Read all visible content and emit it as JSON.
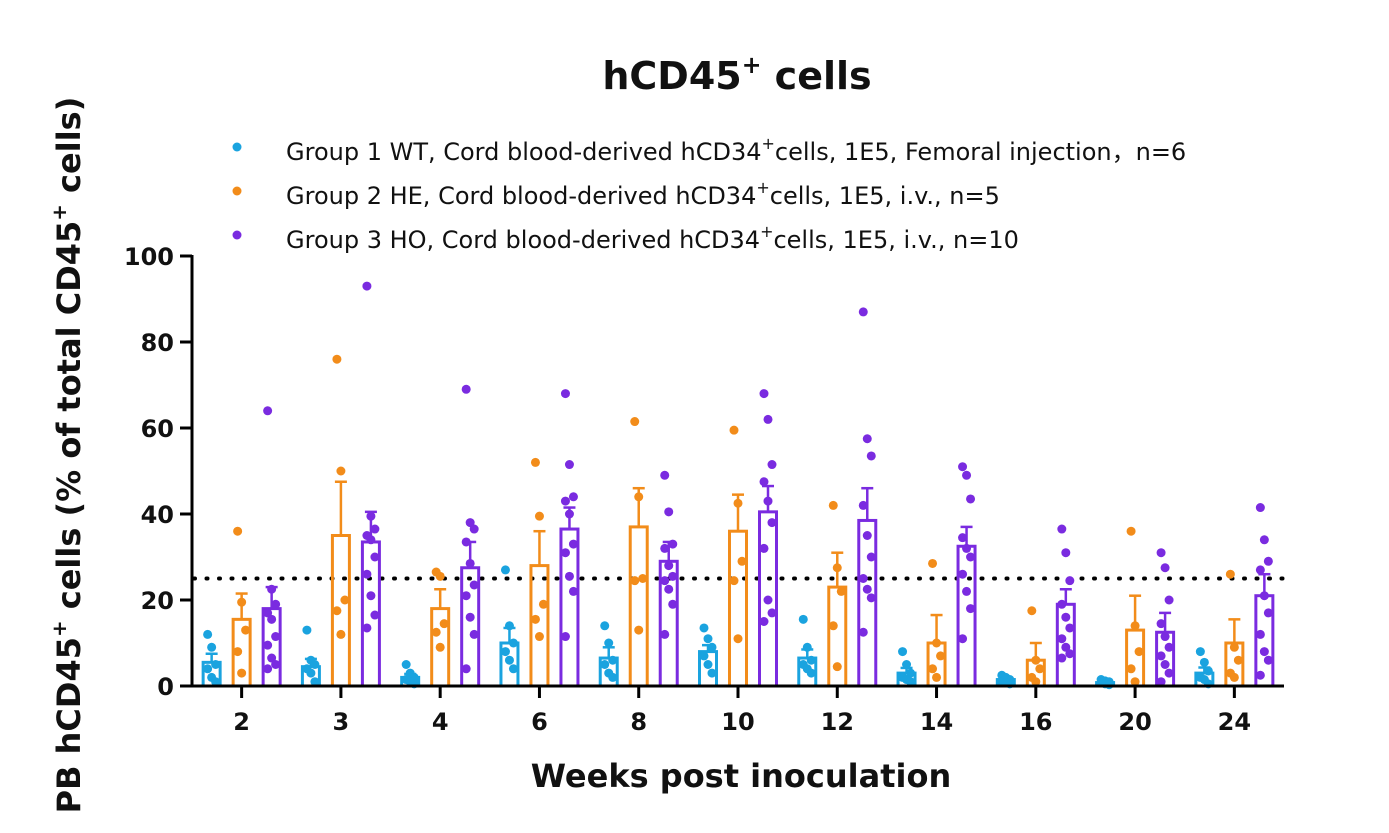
{
  "chart_data": {
    "type": "bar",
    "title": "hCD45",
    "title_sup": "+",
    "title_suffix": " cells",
    "xlabel": "Weeks post inoculation",
    "ylabel_prefix": "PB hCD45",
    "ylabel_sup": "+",
    "ylabel_mid": " cells  (% of total CD45",
    "ylabel_sup2": "+",
    "ylabel_suffix": " cells)",
    "ylim": [
      0,
      100
    ],
    "yticks": [
      "0",
      "20",
      "40",
      "60",
      "80",
      "100"
    ],
    "threshold": 25,
    "categories": [
      "2",
      "3",
      "4",
      "6",
      "8",
      "10",
      "12",
      "14",
      "16",
      "20",
      "24"
    ],
    "series": [
      {
        "name": "Group 1 WT",
        "legend_pre": "Group 1 WT, Cord blood-derived hCD34",
        "legend_sup": "+",
        "legend_post": "cells, 1E5, Femoral injection，n=6",
        "color": "#1aa3df",
        "means": [
          5.5,
          4.5,
          2.0,
          10.0,
          6.5,
          8.0,
          6.5,
          3.0,
          1.5,
          0.8,
          3.0
        ],
        "errors": [
          2.0,
          1.8,
          0.8,
          3.5,
          2.5,
          1.5,
          2.0,
          1.2,
          0.4,
          0.3,
          1.3
        ],
        "points": [
          [
            12,
            9,
            5,
            4,
            2,
            1
          ],
          [
            13,
            6,
            5,
            4,
            3,
            1
          ],
          [
            5,
            3,
            2,
            1.5,
            1,
            0.5
          ],
          [
            27,
            14,
            10,
            8,
            6,
            4
          ],
          [
            14,
            10,
            6,
            5,
            3,
            2
          ],
          [
            13.5,
            11,
            9,
            7,
            5,
            3
          ],
          [
            15.5,
            9,
            6,
            5,
            4,
            3
          ],
          [
            8,
            5,
            3,
            2,
            1.5,
            1
          ],
          [
            2.5,
            2,
            1.5,
            1,
            0.8,
            0.5
          ],
          [
            1.5,
            1.2,
            1,
            0.7,
            0.5,
            0.3
          ],
          [
            8,
            5.5,
            3.5,
            2,
            1.5,
            0.5
          ]
        ]
      },
      {
        "name": "Group 2 HE",
        "legend_pre": "Group 2 HE, Cord blood-derived hCD34",
        "legend_sup": "+",
        "legend_post": "cells, 1E5, i.v., n=5",
        "color": "#f28c1a",
        "means": [
          15.5,
          35.0,
          18.0,
          28.0,
          37.0,
          36.0,
          23.0,
          10.0,
          6.0,
          13.0,
          10.0
        ],
        "errors": [
          6.0,
          12.5,
          4.5,
          8.0,
          9.0,
          8.5,
          8.0,
          6.5,
          4.0,
          8.0,
          5.5
        ],
        "points": [
          [
            36,
            19.5,
            13,
            8,
            3
          ],
          [
            76,
            50,
            20,
            17.5,
            12
          ],
          [
            26.5,
            25.5,
            14.5,
            12.5,
            9
          ],
          [
            52,
            39.5,
            19,
            15.5,
            11.5
          ],
          [
            61.5,
            44,
            25,
            24.5,
            13
          ],
          [
            59.5,
            42.5,
            29,
            24.5,
            11
          ],
          [
            42,
            27.5,
            22,
            14,
            4.5
          ],
          [
            28.5,
            10,
            7,
            4,
            2
          ],
          [
            17.5,
            6,
            4,
            2,
            1
          ],
          [
            36,
            14,
            8,
            4,
            1
          ],
          [
            26,
            9,
            6,
            3,
            2
          ]
        ]
      },
      {
        "name": "Group 3 HO",
        "legend_pre": "Group 3 HO, Cord blood-derived hCD34",
        "legend_sup": "+",
        "legend_post": "cells, 1E5, i.v., n=10",
        "color": "#7a2be0",
        "means": [
          18.0,
          33.5,
          27.5,
          36.5,
          29.0,
          40.5,
          38.5,
          32.5,
          19.0,
          12.5,
          21.0
        ],
        "errors": [
          5.0,
          7.0,
          6.0,
          5.0,
          4.5,
          6.0,
          7.5,
          4.5,
          3.5,
          4.5,
          5.0
        ],
        "points": [
          [
            64,
            22.5,
            19,
            17,
            15.5,
            11.5,
            9.5,
            6.5,
            5,
            4
          ],
          [
            93,
            39.5,
            36.5,
            35,
            34,
            30,
            26,
            21,
            16.5,
            13.5
          ],
          [
            69,
            38,
            36.5,
            33.5,
            28.5,
            23.5,
            21,
            16,
            12,
            4
          ],
          [
            68,
            51.5,
            44,
            43,
            40,
            33,
            31,
            25.5,
            22,
            11.5
          ],
          [
            49,
            40.5,
            33,
            32,
            28,
            25.5,
            24.5,
            22.5,
            19,
            12
          ],
          [
            68,
            62,
            51.5,
            47.5,
            43,
            38,
            32,
            20,
            17,
            15
          ],
          [
            87,
            57.5,
            53.5,
            42,
            35,
            30,
            25,
            22.5,
            20.5,
            12.5
          ],
          [
            51,
            49,
            43.5,
            34.5,
            32,
            30,
            26,
            22,
            18,
            11
          ],
          [
            36.5,
            31,
            24.5,
            19,
            16,
            13.5,
            11,
            9,
            7.5,
            6.5
          ],
          [
            31,
            27.5,
            20,
            14.5,
            11.5,
            9,
            7,
            5,
            3,
            1
          ],
          [
            41.5,
            34,
            29,
            27,
            21,
            17,
            12,
            8,
            6,
            2.5
          ]
        ]
      }
    ]
  }
}
